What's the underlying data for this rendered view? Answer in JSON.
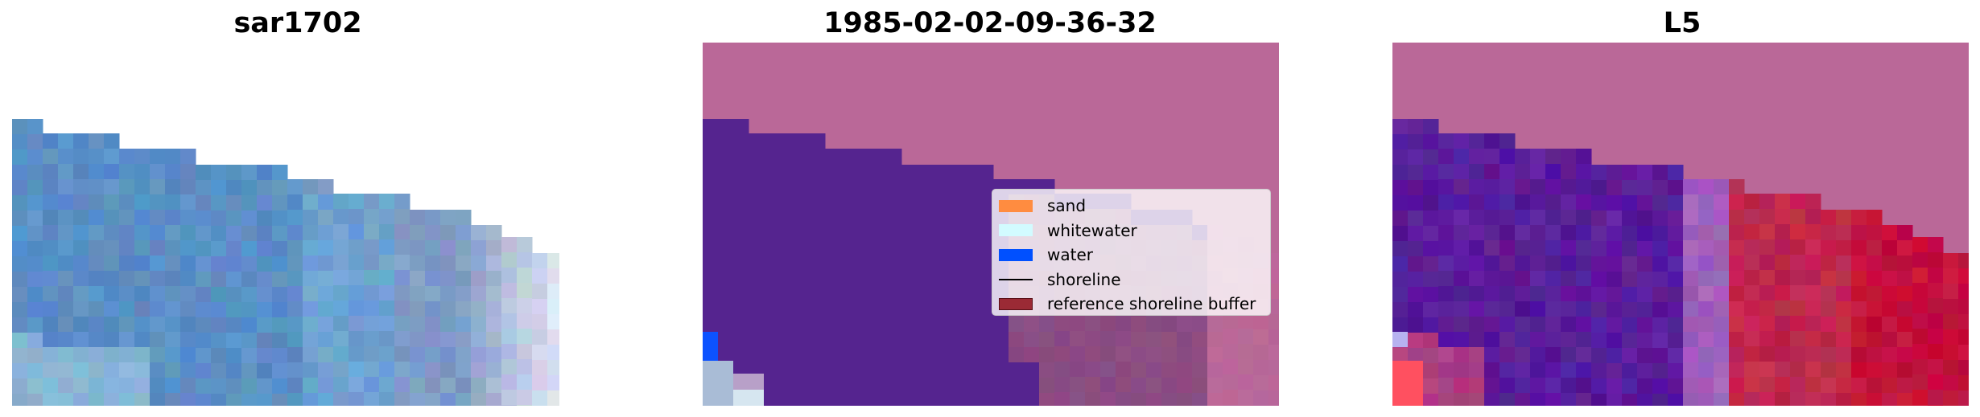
{
  "panels": [
    {
      "title": "sar1702"
    },
    {
      "title": "1985-02-02-09-36-32"
    },
    {
      "title": "L5"
    }
  ],
  "legend": {
    "items": [
      {
        "label": "sand",
        "color": "#ff8c40",
        "kind": "patch"
      },
      {
        "label": "whitewater",
        "color": "#d2fbff",
        "kind": "patch"
      },
      {
        "label": "water",
        "color": "#0050ff",
        "kind": "patch"
      },
      {
        "label": "shoreline",
        "color": "#000000",
        "kind": "line"
      },
      {
        "label": "reference shoreline buffer",
        "color": "#9b2a35",
        "kind": "patch",
        "edge": "#5a1018"
      }
    ]
  },
  "colors": {
    "background": "#ffffff",
    "land_pink": "#ba6898",
    "water_purple": "#55248f",
    "buffer_mauve": "#8b4c82",
    "rgb_blue": "#5b8fc6",
    "index_red": "#c0284e"
  }
}
